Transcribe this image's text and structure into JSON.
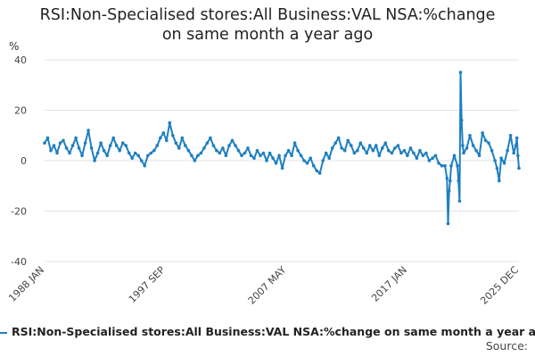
{
  "chart_data": {
    "type": "line",
    "title_lines": [
      "RSI:Non-Specialised stores:All Business:VAL NSA:%change",
      "on same month a year ago"
    ],
    "ylabel": "%",
    "ylim": [
      -40,
      40
    ],
    "yticks": [
      40,
      20,
      0,
      -20,
      -40
    ],
    "grid": true,
    "xlim": [
      "1988-01",
      "2025-12"
    ],
    "xticks": [
      {
        "label": "1988 JAN",
        "date": "1988-01"
      },
      {
        "label": "1997 SEP",
        "date": "1997-09"
      },
      {
        "label": "2007 MAY",
        "date": "2007-05"
      },
      {
        "label": "2017 JAN",
        "date": "2017-01"
      },
      {
        "label": "2025 DEC",
        "date": "2025-12"
      }
    ],
    "legend_position": "bottom",
    "series": [
      {
        "name": "RSI:Non-Specialised stores:All Business:VAL NSA:%change on same month a year ago",
        "color": "#1f7fc1",
        "points": [
          [
            "1988-01",
            7
          ],
          [
            "1988-04",
            9
          ],
          [
            "1988-07",
            4
          ],
          [
            "1988-10",
            6
          ],
          [
            "1989-01",
            3
          ],
          [
            "1989-04",
            7
          ],
          [
            "1989-07",
            8
          ],
          [
            "1989-10",
            5
          ],
          [
            "1990-01",
            3
          ],
          [
            "1990-04",
            6
          ],
          [
            "1990-07",
            9
          ],
          [
            "1990-10",
            5
          ],
          [
            "1991-01",
            2
          ],
          [
            "1991-04",
            7
          ],
          [
            "1991-07",
            12
          ],
          [
            "1991-10",
            5
          ],
          [
            "1992-01",
            0
          ],
          [
            "1992-04",
            3
          ],
          [
            "1992-07",
            7
          ],
          [
            "1992-10",
            4
          ],
          [
            "1993-01",
            2
          ],
          [
            "1993-04",
            6
          ],
          [
            "1993-07",
            9
          ],
          [
            "1993-10",
            6
          ],
          [
            "1994-01",
            4
          ],
          [
            "1994-04",
            7
          ],
          [
            "1994-07",
            6
          ],
          [
            "1994-10",
            3
          ],
          [
            "1995-01",
            1
          ],
          [
            "1995-04",
            3
          ],
          [
            "1995-07",
            2
          ],
          [
            "1995-10",
            0
          ],
          [
            "1996-01",
            -2
          ],
          [
            "1996-04",
            2
          ],
          [
            "1996-07",
            3
          ],
          [
            "1996-10",
            4
          ],
          [
            "1997-01",
            6
          ],
          [
            "1997-04",
            9
          ],
          [
            "1997-07",
            11
          ],
          [
            "1997-10",
            8
          ],
          [
            "1998-01",
            15
          ],
          [
            "1998-04",
            10
          ],
          [
            "1998-07",
            7
          ],
          [
            "1998-10",
            5
          ],
          [
            "1999-01",
            9
          ],
          [
            "1999-04",
            6
          ],
          [
            "1999-07",
            4
          ],
          [
            "1999-10",
            2
          ],
          [
            "2000-01",
            0
          ],
          [
            "2000-04",
            2
          ],
          [
            "2000-07",
            3
          ],
          [
            "2000-10",
            5
          ],
          [
            "2001-01",
            7
          ],
          [
            "2001-04",
            9
          ],
          [
            "2001-07",
            6
          ],
          [
            "2001-10",
            4
          ],
          [
            "2002-01",
            3
          ],
          [
            "2002-04",
            5
          ],
          [
            "2002-07",
            2
          ],
          [
            "2002-10",
            6
          ],
          [
            "2003-01",
            8
          ],
          [
            "2003-04",
            6
          ],
          [
            "2003-07",
            4
          ],
          [
            "2003-10",
            2
          ],
          [
            "2004-01",
            3
          ],
          [
            "2004-04",
            5
          ],
          [
            "2004-07",
            2
          ],
          [
            "2004-10",
            1
          ],
          [
            "2005-01",
            4
          ],
          [
            "2005-04",
            2
          ],
          [
            "2005-07",
            3
          ],
          [
            "2005-10",
            0
          ],
          [
            "2006-01",
            3
          ],
          [
            "2006-04",
            1
          ],
          [
            "2006-07",
            -1
          ],
          [
            "2006-10",
            2
          ],
          [
            "2007-01",
            -3
          ],
          [
            "2007-04",
            2
          ],
          [
            "2007-07",
            4
          ],
          [
            "2007-10",
            2
          ],
          [
            "2008-01",
            7
          ],
          [
            "2008-04",
            4
          ],
          [
            "2008-07",
            2
          ],
          [
            "2008-10",
            0
          ],
          [
            "2009-01",
            -1
          ],
          [
            "2009-04",
            1
          ],
          [
            "2009-07",
            -2
          ],
          [
            "2009-10",
            -4
          ],
          [
            "2010-01",
            -5
          ],
          [
            "2010-04",
            0
          ],
          [
            "2010-07",
            3
          ],
          [
            "2010-10",
            1
          ],
          [
            "2011-01",
            5
          ],
          [
            "2011-04",
            7
          ],
          [
            "2011-07",
            9
          ],
          [
            "2011-10",
            5
          ],
          [
            "2012-01",
            4
          ],
          [
            "2012-04",
            8
          ],
          [
            "2012-07",
            6
          ],
          [
            "2012-10",
            3
          ],
          [
            "2013-01",
            4
          ],
          [
            "2013-04",
            7
          ],
          [
            "2013-07",
            5
          ],
          [
            "2013-10",
            3
          ],
          [
            "2014-01",
            6
          ],
          [
            "2014-04",
            4
          ],
          [
            "2014-07",
            6
          ],
          [
            "2014-10",
            2
          ],
          [
            "2015-01",
            5
          ],
          [
            "2015-04",
            7
          ],
          [
            "2015-07",
            4
          ],
          [
            "2015-10",
            3
          ],
          [
            "2016-01",
            5
          ],
          [
            "2016-04",
            6
          ],
          [
            "2016-07",
            3
          ],
          [
            "2016-10",
            4
          ],
          [
            "2017-01",
            2
          ],
          [
            "2017-04",
            5
          ],
          [
            "2017-07",
            3
          ],
          [
            "2017-10",
            1
          ],
          [
            "2018-01",
            4
          ],
          [
            "2018-04",
            2
          ],
          [
            "2018-07",
            3
          ],
          [
            "2018-10",
            0
          ],
          [
            "2019-01",
            1
          ],
          [
            "2019-04",
            2
          ],
          [
            "2019-07",
            -1
          ],
          [
            "2019-10",
            -2
          ],
          [
            "2020-01",
            -2
          ],
          [
            "2020-03",
            -7
          ],
          [
            "2020-04",
            -25
          ],
          [
            "2020-05",
            -12
          ],
          [
            "2020-06",
            -8
          ],
          [
            "2020-07",
            -2
          ],
          [
            "2020-10",
            2
          ],
          [
            "2021-01",
            -2
          ],
          [
            "2021-02",
            -8
          ],
          [
            "2021-03",
            -16
          ],
          [
            "2021-04",
            35
          ],
          [
            "2021-05",
            16
          ],
          [
            "2021-06",
            6
          ],
          [
            "2021-07",
            3
          ],
          [
            "2021-10",
            5
          ],
          [
            "2022-01",
            10
          ],
          [
            "2022-04",
            6
          ],
          [
            "2022-07",
            4
          ],
          [
            "2022-10",
            2
          ],
          [
            "2023-01",
            11
          ],
          [
            "2023-04",
            8
          ],
          [
            "2023-07",
            7
          ],
          [
            "2023-10",
            4
          ],
          [
            "2024-01",
            0
          ],
          [
            "2024-03",
            -3
          ],
          [
            "2024-05",
            -8
          ],
          [
            "2024-07",
            1
          ],
          [
            "2024-10",
            -1
          ],
          [
            "2025-01",
            4
          ],
          [
            "2025-04",
            10
          ],
          [
            "2025-07",
            3
          ],
          [
            "2025-09",
            6
          ],
          [
            "2025-10",
            9
          ],
          [
            "2025-11",
            2
          ],
          [
            "2025-12",
            -3
          ]
        ]
      }
    ],
    "source_label": "Source:"
  }
}
